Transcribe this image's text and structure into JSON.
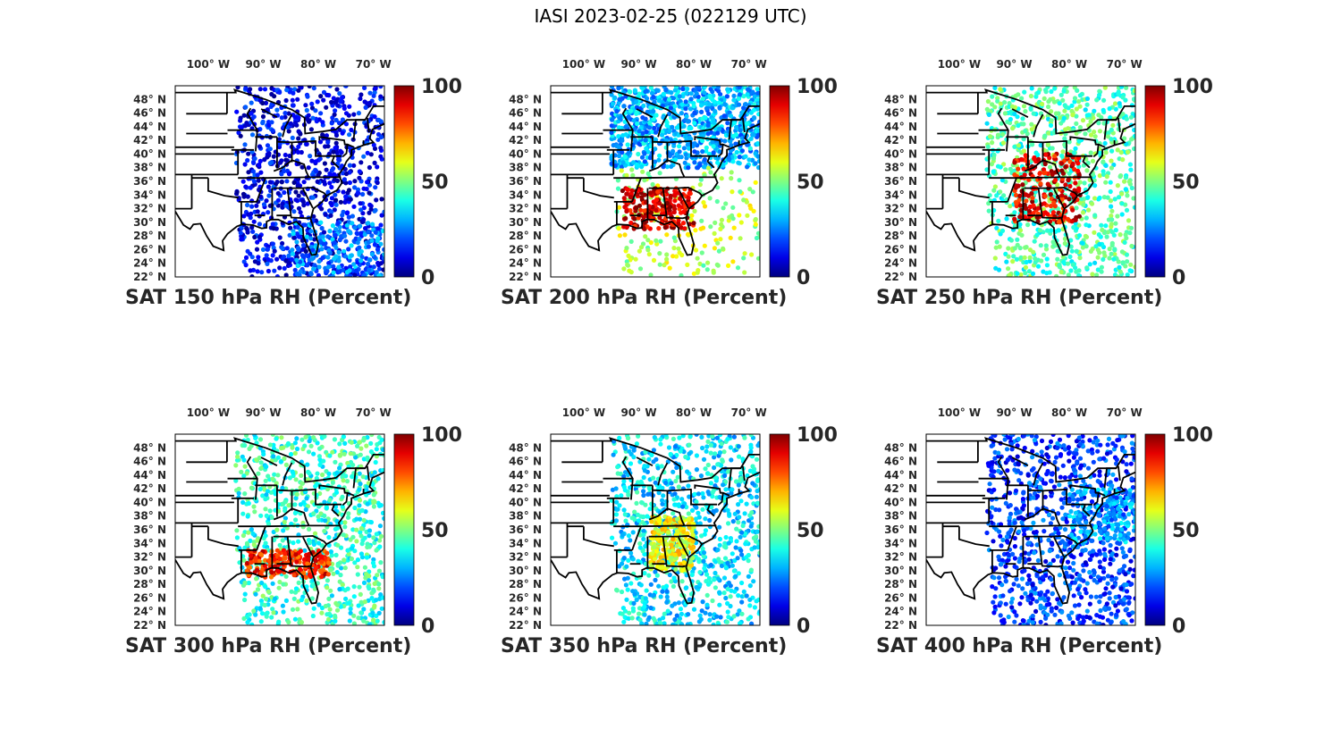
{
  "figure_title": "IASI 2023-02-25 (022129 UTC)",
  "chart_data": [
    {
      "type": "scatter",
      "title": "SAT 150 hPa RH (Percent)",
      "level_hPa": 150,
      "colormap": "jet",
      "clim": [
        0,
        100
      ],
      "colorbar_ticks": [
        "0",
        "50",
        "100"
      ],
      "lon_ticks": [
        "100° W",
        "90° W",
        "80° W",
        "70° W"
      ],
      "lat_ticks": [
        "48° N",
        "46° N",
        "44° N",
        "42° N",
        "40° N",
        "38° N",
        "36° N",
        "34° N",
        "32° N",
        "30° N",
        "28° N",
        "26° N",
        "24° N",
        "22° N"
      ],
      "lon_range": [
        -106,
        -68
      ],
      "lat_range": [
        22,
        50
      ],
      "regions": [
        {
          "lon": [
            -95,
            -68
          ],
          "lat": [
            22,
            50
          ],
          "rh": 12
        },
        {
          "lon": [
            -85,
            -68
          ],
          "lat": [
            22,
            30
          ],
          "rh": 25
        }
      ]
    },
    {
      "type": "scatter",
      "title": "SAT 200 hPa RH (Percent)",
      "level_hPa": 200,
      "colormap": "jet",
      "clim": [
        0,
        100
      ],
      "colorbar_ticks": [
        "0",
        "50",
        "100"
      ],
      "lon_ticks": [
        "100° W",
        "90° W",
        "80° W",
        "70° W"
      ],
      "lat_ticks": [
        "48° N",
        "46° N",
        "44° N",
        "42° N",
        "40° N",
        "38° N",
        "36° N",
        "34° N",
        "32° N",
        "30° N",
        "28° N",
        "26° N",
        "24° N",
        "22° N"
      ],
      "lon_range": [
        -106,
        -68
      ],
      "lat_range": [
        22,
        50
      ],
      "regions": [
        {
          "lon": [
            -95,
            -68
          ],
          "lat": [
            38,
            50
          ],
          "rh": 30
        },
        {
          "lon": [
            -95,
            -68
          ],
          "lat": [
            22,
            38
          ],
          "rh": 55
        },
        {
          "lon": [
            -93,
            -80
          ],
          "lat": [
            29,
            35
          ],
          "rh": 92
        }
      ]
    },
    {
      "type": "scatter",
      "title": "SAT 250 hPa RH (Percent)",
      "level_hPa": 250,
      "colormap": "jet",
      "clim": [
        0,
        100
      ],
      "colorbar_ticks": [
        "0",
        "50",
        "100"
      ],
      "lon_ticks": [
        "100° W",
        "90° W",
        "80° W",
        "70° W"
      ],
      "lat_ticks": [
        "48° N",
        "46° N",
        "44° N",
        "42° N",
        "40° N",
        "38° N",
        "36° N",
        "34° N",
        "32° N",
        "30° N",
        "28° N",
        "26° N",
        "24° N",
        "22° N"
      ],
      "lon_range": [
        -106,
        -68
      ],
      "lat_range": [
        22,
        50
      ],
      "regions": [
        {
          "lon": [
            -95,
            -68
          ],
          "lat": [
            22,
            50
          ],
          "rh": 45
        },
        {
          "lon": [
            -90,
            -78
          ],
          "lat": [
            30,
            40
          ],
          "rh": 90
        }
      ]
    },
    {
      "type": "scatter",
      "title": "SAT 300 hPa RH (Percent)",
      "level_hPa": 300,
      "colormap": "jet",
      "clim": [
        0,
        100
      ],
      "colorbar_ticks": [
        "0",
        "50",
        "100"
      ],
      "lon_ticks": [
        "100° W",
        "90° W",
        "80° W",
        "70° W"
      ],
      "lat_ticks": [
        "48° N",
        "46° N",
        "44° N",
        "42° N",
        "40° N",
        "38° N",
        "36° N",
        "34° N",
        "32° N",
        "30° N",
        "28° N",
        "26° N",
        "24° N",
        "22° N"
      ],
      "lon_range": [
        -106,
        -68
      ],
      "lat_range": [
        22,
        50
      ],
      "regions": [
        {
          "lon": [
            -95,
            -68
          ],
          "lat": [
            22,
            50
          ],
          "rh": 42
        },
        {
          "lon": [
            -93,
            -78
          ],
          "lat": [
            29,
            33
          ],
          "rh": 85
        }
      ]
    },
    {
      "type": "scatter",
      "title": "SAT 350 hPa RH (Percent)",
      "level_hPa": 350,
      "colormap": "jet",
      "clim": [
        0,
        100
      ],
      "colorbar_ticks": [
        "0",
        "50",
        "100"
      ],
      "lon_ticks": [
        "100° W",
        "90° W",
        "80° W",
        "70° W"
      ],
      "lat_ticks": [
        "48° N",
        "46° N",
        "44° N",
        "42° N",
        "40° N",
        "38° N",
        "36° N",
        "34° N",
        "32° N",
        "30° N",
        "28° N",
        "26° N",
        "24° N",
        "22° N"
      ],
      "lon_range": [
        -106,
        -68
      ],
      "lat_range": [
        22,
        50
      ],
      "regions": [
        {
          "lon": [
            -95,
            -68
          ],
          "lat": [
            22,
            50
          ],
          "rh": 35
        },
        {
          "lon": [
            -88,
            -80
          ],
          "lat": [
            30,
            38
          ],
          "rh": 62
        }
      ]
    },
    {
      "type": "scatter",
      "title": "SAT 400 hPa RH (Percent)",
      "level_hPa": 400,
      "colormap": "jet",
      "clim": [
        0,
        100
      ],
      "colorbar_ticks": [
        "0",
        "50",
        "100"
      ],
      "lon_ticks": [
        "100° W",
        "90° W",
        "80° W",
        "70° W"
      ],
      "lat_ticks": [
        "48° N",
        "46° N",
        "44° N",
        "42° N",
        "40° N",
        "38° N",
        "36° N",
        "34° N",
        "32° N",
        "30° N",
        "28° N",
        "26° N",
        "24° N",
        "22° N"
      ],
      "lon_range": [
        -106,
        -68
      ],
      "lat_range": [
        22,
        50
      ],
      "regions": [
        {
          "lon": [
            -95,
            -68
          ],
          "lat": [
            22,
            50
          ],
          "rh": 18
        },
        {
          "lon": [
            -80,
            -68
          ],
          "lat": [
            34,
            42
          ],
          "rh": 28
        }
      ]
    }
  ]
}
